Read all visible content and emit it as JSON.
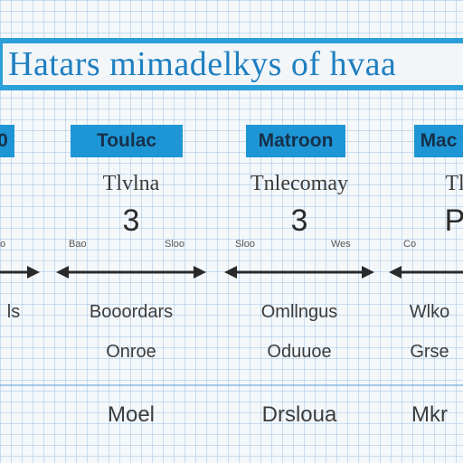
{
  "title": "Hatars mimadelkys of hvaa",
  "columns": [
    {
      "tag": "0",
      "header": "",
      "number": "",
      "label_left": "o",
      "label_right": "",
      "row1": "ls",
      "row2": "",
      "row3": ""
    },
    {
      "tag": "Toulac",
      "header": "Tlvlna",
      "number": "3",
      "label_left": "Bao",
      "label_right": "Sloo",
      "row1": "Booordars",
      "row2": "Onroe",
      "row3": "Moel"
    },
    {
      "tag": "Matroon",
      "header": "Tnlecomay",
      "number": "3",
      "label_left": "Sloo",
      "label_right": "Wes",
      "row1": "Omllngus",
      "row2": "Oduuoe",
      "row3": "Drsloua"
    },
    {
      "tag": "Mac",
      "header": "Tl",
      "number": "P",
      "label_left": "Co",
      "label_right": "",
      "row1": "Wlko",
      "row2": "Grse",
      "row3": "Mkr"
    }
  ],
  "colors": {
    "banner": "#2a9fd8",
    "tag": "#1e96d6",
    "title": "#1f7fc0",
    "arrow": "#2a2a2a"
  }
}
